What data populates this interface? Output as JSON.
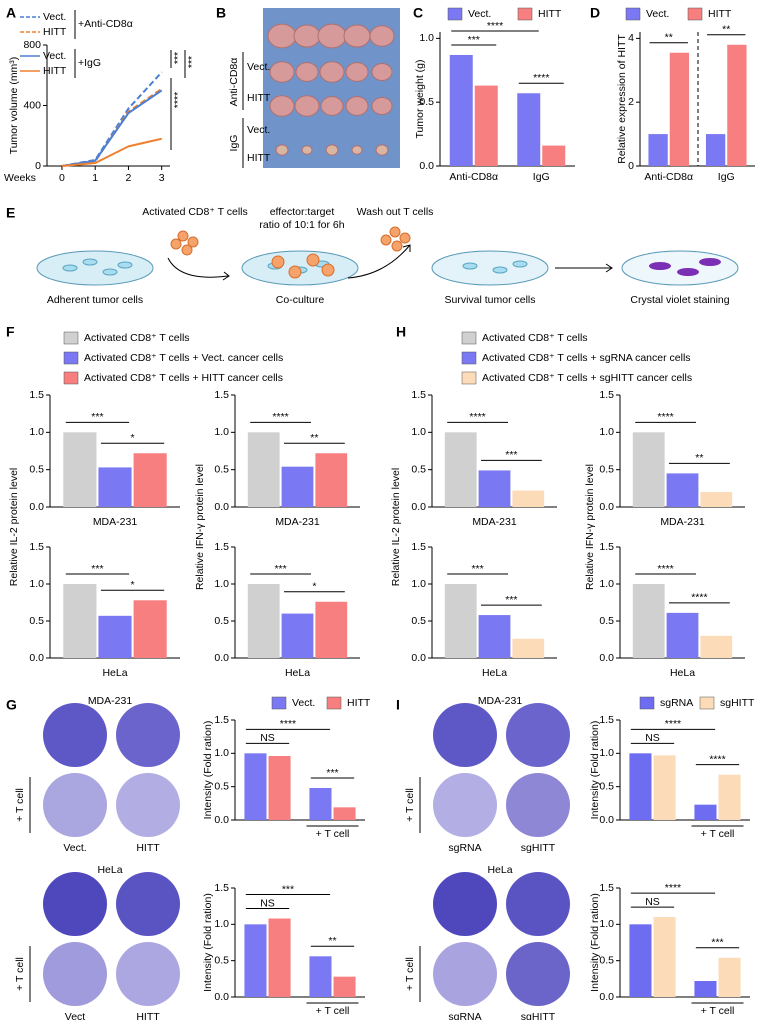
{
  "panel_letters": [
    "A",
    "B",
    "C",
    "D",
    "E",
    "F",
    "G",
    "H",
    "I"
  ],
  "photo_b": {
    "groups": [
      {
        "label": "Anti-CD8α",
        "rows": [
          "Vect.",
          "HITT"
        ]
      },
      {
        "label": "IgG",
        "rows": [
          "Vect.",
          "HITT"
        ]
      }
    ]
  },
  "diagram_e": {
    "steps": [
      "Adherent tumor cells",
      "Co-culture",
      "Survival tumor cells",
      "Crystal violet staining"
    ],
    "notes": [
      "Activated CD8⁺ T cells",
      "effector:target",
      "ratio of 10:1 for 6h",
      "Wash out T cells"
    ]
  },
  "images_g": {
    "titles": [
      "MDA-231",
      "HeLa"
    ],
    "side_labels": [
      "+ T cell",
      "+ T cell"
    ],
    "columns": [
      [
        "Vect.",
        "HITT"
      ],
      [
        "Vect",
        "HITT"
      ]
    ]
  },
  "images_i": {
    "titles": [
      "MDA-231",
      "HeLa"
    ],
    "side_labels": [
      "+ T cell",
      "+ T cell"
    ],
    "columns": [
      [
        "sgRNA",
        "sgHITT"
      ],
      [
        "sgRNA",
        "sgHITT"
      ]
    ]
  },
  "chart_data": [
    {
      "type": "line",
      "ylabel": "Tumor volume (mm³)",
      "xlabel": "Weeks",
      "x": [
        0,
        1,
        2,
        3
      ],
      "xlim": [
        -0.45,
        3.25
      ],
      "xticks": [
        0,
        1,
        2,
        3
      ],
      "ylim": [
        0,
        800
      ],
      "yticks": [
        0,
        400,
        800
      ],
      "legend_groups": [
        "+Anti-CD8α",
        "+IgG"
      ],
      "series": [
        {
          "name": "Vect.",
          "color": "#4a7fd4",
          "dash": true,
          "values": [
            0,
            40,
            380,
            620
          ]
        },
        {
          "name": "HITT",
          "color": "#f08030",
          "dash": true,
          "values": [
            0,
            30,
            360,
            510
          ]
        },
        {
          "name": "Vect.",
          "color": "#4a7fd4",
          "dash": false,
          "values": [
            0,
            35,
            350,
            500
          ]
        },
        {
          "name": "HITT",
          "color": "#f08030",
          "dash": false,
          "values": [
            0,
            20,
            130,
            180
          ]
        }
      ],
      "significance": [
        "***",
        "***",
        "****"
      ]
    },
    {
      "type": "bar",
      "ylabel": "Tumor weight (g)",
      "categories": [
        "Anti-CD8α",
        "IgG"
      ],
      "ylim": [
        0,
        1.05
      ],
      "yticks": [
        {
          "value": 0,
          "label": "0.0"
        },
        {
          "value": 0.5,
          "label": "0.5"
        },
        {
          "value": 1,
          "label": "1.0"
        }
      ],
      "series": [
        {
          "name": "Vect.",
          "color": "#7a78f2",
          "values": [
            0.87,
            0.57
          ]
        },
        {
          "name": "HITT",
          "color": "#f77f7f",
          "values": [
            0.63,
            0.16
          ]
        }
      ],
      "significance": [
        "****",
        "***",
        "****"
      ]
    },
    {
      "type": "bar",
      "ylabel": "Relative expression of HITT",
      "categories": [
        "Anti-CD8α",
        "IgG"
      ],
      "ylim": [
        0,
        4.2
      ],
      "yticks": [
        0,
        2,
        4
      ],
      "series": [
        {
          "name": "Vect.",
          "color": "#7a78f2",
          "values": [
            1,
            1
          ]
        },
        {
          "name": "HITT",
          "color": "#f77f7f",
          "values": [
            3.55,
            3.8
          ]
        }
      ],
      "significance": [
        "**",
        "**"
      ]
    },
    {
      "type": "bar",
      "ylabel": "Relative IL-2  protein level",
      "xlabel": "MDA-231",
      "ylim": [
        0,
        1.5
      ],
      "yticks": [
        {
          "value": 0,
          "label": "0.0"
        },
        {
          "value": 0.5,
          "label": "0.5"
        },
        {
          "value": 1,
          "label": "1.0"
        },
        {
          "value": 1.5,
          "label": "1.5"
        }
      ],
      "series": [
        {
          "name": "Activated CD8⁺ T cells",
          "color": "#d0d0d0",
          "values": [
            1.0
          ]
        },
        {
          "name": "Activated CD8⁺ T cells + Vect. cancer cells",
          "color": "#7a78f2",
          "values": [
            0.53
          ]
        },
        {
          "name": "Activated CD8⁺ T cells + HITT cancer cells",
          "color": "#f77f7f",
          "values": [
            0.72
          ]
        }
      ],
      "significance": [
        "***",
        "*"
      ]
    },
    {
      "type": "bar",
      "ylabel": "Relative IFN-γ protein level",
      "xlabel": "MDA-231",
      "ylim": [
        0,
        1.5
      ],
      "yticks": [
        {
          "value": 0,
          "label": "0.0"
        },
        {
          "value": 0.5,
          "label": "0.5"
        },
        {
          "value": 1,
          "label": "1.0"
        },
        {
          "value": 1.5,
          "label": "1.5"
        }
      ],
      "series": [
        {
          "color": "#d0d0d0",
          "values": [
            1.0
          ]
        },
        {
          "color": "#7a78f2",
          "values": [
            0.54
          ]
        },
        {
          "color": "#f77f7f",
          "values": [
            0.72
          ]
        }
      ],
      "significance": [
        "****",
        "**"
      ]
    },
    {
      "type": "bar",
      "xlabel": "HeLa",
      "ylim": [
        0,
        1.5
      ],
      "yticks": [
        {
          "value": 0,
          "label": "0.0"
        },
        {
          "value": 0.5,
          "label": "0.5"
        },
        {
          "value": 1,
          "label": "1.0"
        },
        {
          "value": 1.5,
          "label": "1.5"
        }
      ],
      "series": [
        {
          "color": "#d0d0d0",
          "values": [
            1.0
          ]
        },
        {
          "color": "#7a78f2",
          "values": [
            0.57
          ]
        },
        {
          "color": "#f77f7f",
          "values": [
            0.78
          ]
        }
      ],
      "significance": [
        "***",
        "*"
      ]
    },
    {
      "type": "bar",
      "xlabel": "HeLa",
      "ylim": [
        0,
        1.5
      ],
      "yticks": [
        {
          "value": 0,
          "label": "0.0"
        },
        {
          "value": 0.5,
          "label": "0.5"
        },
        {
          "value": 1,
          "label": "1.0"
        },
        {
          "value": 1.5,
          "label": "1.5"
        }
      ],
      "series": [
        {
          "color": "#d0d0d0",
          "values": [
            1.0
          ]
        },
        {
          "color": "#7a78f2",
          "values": [
            0.6
          ]
        },
        {
          "color": "#f77f7f",
          "values": [
            0.76
          ]
        }
      ],
      "significance": [
        "***",
        "*"
      ]
    },
    {
      "type": "bar",
      "ylabel": "Relative IL-2  protein level",
      "xlabel": "MDA-231",
      "ylim": [
        0,
        1.5
      ],
      "yticks": [
        {
          "value": 0,
          "label": "0.0"
        },
        {
          "value": 0.5,
          "label": "0.5"
        },
        {
          "value": 1,
          "label": "1.0"
        },
        {
          "value": 1.5,
          "label": "1.5"
        }
      ],
      "series": [
        {
          "name": "Activated CD8⁺ T cells",
          "color": "#d0d0d0",
          "values": [
            1.0
          ]
        },
        {
          "name": "Activated CD8⁺ T cells + sgRNA cancer cells",
          "color": "#7a78f2",
          "values": [
            0.49
          ]
        },
        {
          "name": "Activated CD8⁺ T cells + sgHITT cancer cells",
          "color": "#fcdcb8",
          "values": [
            0.22
          ]
        }
      ],
      "significance": [
        "****",
        "***"
      ]
    },
    {
      "type": "bar",
      "ylabel": "Relative IFN-γ protein level",
      "xlabel": "MDA-231",
      "ylim": [
        0,
        1.5
      ],
      "yticks": [
        {
          "value": 0,
          "label": "0.0"
        },
        {
          "value": 0.5,
          "label": "0.5"
        },
        {
          "value": 1,
          "label": "1.0"
        },
        {
          "value": 1.5,
          "label": "1.5"
        }
      ],
      "series": [
        {
          "color": "#d0d0d0",
          "values": [
            1.0
          ]
        },
        {
          "color": "#7a78f2",
          "values": [
            0.45
          ]
        },
        {
          "color": "#fcdcb8",
          "values": [
            0.2
          ]
        }
      ],
      "significance": [
        "****",
        "**"
      ]
    },
    {
      "type": "bar",
      "xlabel": "HeLa",
      "ylim": [
        0,
        1.5
      ],
      "yticks": [
        {
          "value": 0,
          "label": "0.0"
        },
        {
          "value": 0.5,
          "label": "0.5"
        },
        {
          "value": 1,
          "label": "1.0"
        },
        {
          "value": 1.5,
          "label": "1.5"
        }
      ],
      "series": [
        {
          "color": "#d0d0d0",
          "values": [
            1.0
          ]
        },
        {
          "color": "#7a78f2",
          "values": [
            0.58
          ]
        },
        {
          "color": "#fcdcb8",
          "values": [
            0.26
          ]
        }
      ],
      "significance": [
        "***",
        "***"
      ]
    },
    {
      "type": "bar",
      "xlabel": "HeLa",
      "ylim": [
        0,
        1.5
      ],
      "yticks": [
        {
          "value": 0,
          "label": "0.0"
        },
        {
          "value": 0.5,
          "label": "0.5"
        },
        {
          "value": 1,
          "label": "1.0"
        },
        {
          "value": 1.5,
          "label": "1.5"
        }
      ],
      "series": [
        {
          "color": "#d0d0d0",
          "values": [
            1.0
          ]
        },
        {
          "color": "#7a78f2",
          "values": [
            0.61
          ]
        },
        {
          "color": "#fcdcb8",
          "values": [
            0.3
          ]
        }
      ],
      "significance": [
        "****",
        "****"
      ]
    },
    {
      "type": "bar",
      "ylabel": "Intensity (Fold ration)",
      "categories": [
        null,
        "+ T cell"
      ],
      "ylim": [
        0,
        1.5
      ],
      "yticks": [
        {
          "value": 0,
          "label": "0.0"
        },
        {
          "value": 0.5,
          "label": "0.5"
        },
        {
          "value": 1,
          "label": "1.0"
        },
        {
          "value": 1.5,
          "label": "1.5"
        }
      ],
      "series": [
        {
          "name": "Vect.",
          "color": "#7a78f2",
          "values": [
            1.0,
            0.48
          ]
        },
        {
          "name": "HITT",
          "color": "#f77f7f",
          "values": [
            0.96,
            0.19
          ]
        }
      ],
      "significance": [
        "****",
        "NS",
        "***"
      ]
    },
    {
      "type": "bar",
      "ylabel": "Intensity (Fold ration)",
      "categories": [
        null,
        "+ T cell"
      ],
      "ylim": [
        0,
        1.5
      ],
      "yticks": [
        {
          "value": 0,
          "label": "0.0"
        },
        {
          "value": 0.5,
          "label": "0.5"
        },
        {
          "value": 1,
          "label": "1.0"
        },
        {
          "value": 1.5,
          "label": "1.5"
        }
      ],
      "series": [
        {
          "color": "#7a78f2",
          "values": [
            1.0,
            0.56
          ]
        },
        {
          "color": "#f77f7f",
          "values": [
            1.08,
            0.28
          ]
        }
      ],
      "significance": [
        "***",
        "NS",
        "**"
      ]
    },
    {
      "type": "bar",
      "ylabel": "Intensity (Fold ration)",
      "categories": [
        null,
        "+ T cell"
      ],
      "ylim": [
        0,
        1.5
      ],
      "yticks": [
        {
          "value": 0,
          "label": "0.0"
        },
        {
          "value": 0.5,
          "label": "0.5"
        },
        {
          "value": 1,
          "label": "1.0"
        },
        {
          "value": 1.5,
          "label": "1.5"
        }
      ],
      "series": [
        {
          "name": "sgRNA",
          "color": "#6e6cf0",
          "values": [
            1.0,
            0.23
          ]
        },
        {
          "name": "sgHITT",
          "color": "#fcdcb8",
          "values": [
            0.97,
            0.68
          ]
        }
      ],
      "significance": [
        "****",
        "NS",
        "****"
      ]
    },
    {
      "type": "bar",
      "ylabel": "Intensity (Fold ration)",
      "categories": [
        null,
        "+ T cell"
      ],
      "ylim": [
        0,
        1.5
      ],
      "yticks": [
        {
          "value": 0,
          "label": "0.0"
        },
        {
          "value": 0.5,
          "label": "0.5"
        },
        {
          "value": 1,
          "label": "1.0"
        },
        {
          "value": 1.5,
          "label": "1.5"
        }
      ],
      "series": [
        {
          "color": "#6e6cf0",
          "values": [
            1.0,
            0.22
          ]
        },
        {
          "color": "#fcdcb8",
          "values": [
            1.1,
            0.54
          ]
        }
      ],
      "significance": [
        "****",
        "NS",
        "***"
      ]
    }
  ]
}
